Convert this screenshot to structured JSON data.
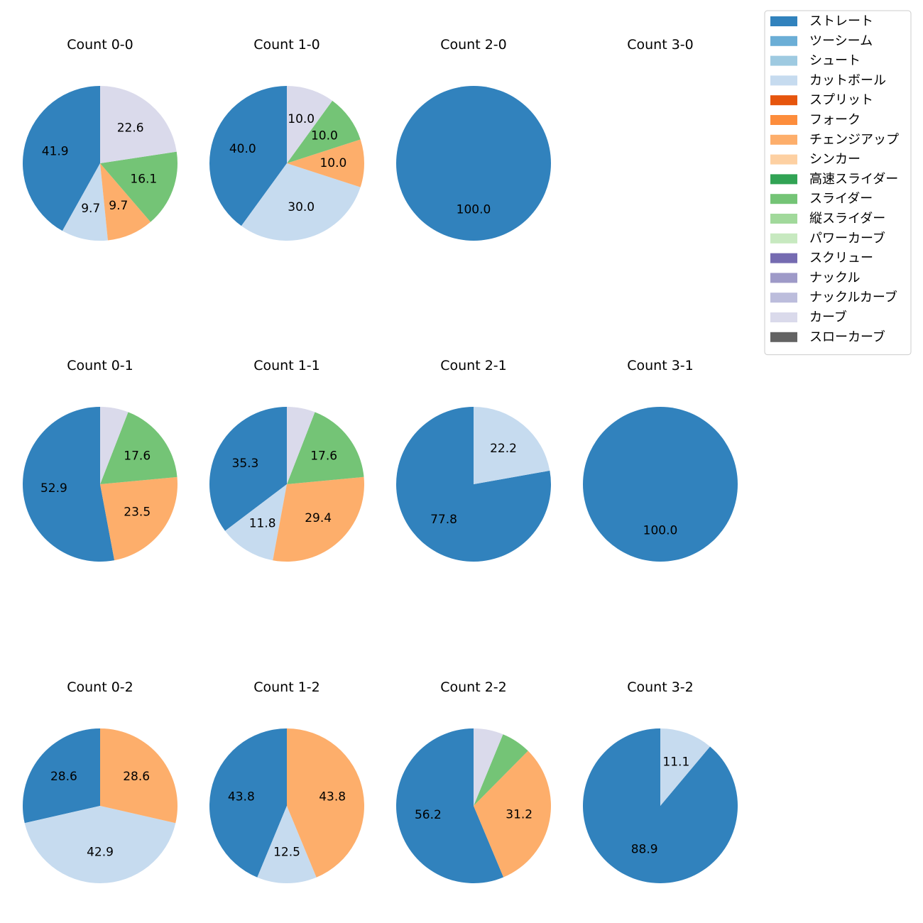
{
  "colors": {
    "ストレート": "#3182bd",
    "ツーシーム": "#6baed6",
    "シュート": "#9ecae1",
    "カットボール": "#c6dbef",
    "スプリット": "#e6550d",
    "フォーク": "#fd8d3c",
    "チェンジアップ": "#fdae6b",
    "シンカー": "#fdd0a2",
    "高速スライダー": "#31a354",
    "スライダー": "#74c476",
    "縦スライダー": "#a1d99b",
    "パワーカーブ": "#c7e9c0",
    "スクリュー": "#756bb1",
    "ナックル": "#9e9ac8",
    "ナックルカーブ": "#bcbddc",
    "カーブ": "#dadaeb",
    "スローカーブ": "#636363"
  },
  "chart_data": [
    {
      "type": "pie",
      "title": "Count 0-0",
      "slices": [
        {
          "label": "ストレート",
          "value": 41.9
        },
        {
          "label": "カットボール",
          "value": 9.7
        },
        {
          "label": "チェンジアップ",
          "value": 9.7
        },
        {
          "label": "スライダー",
          "value": 16.1
        },
        {
          "label": "カーブ",
          "value": 22.6
        }
      ]
    },
    {
      "type": "pie",
      "title": "Count 1-0",
      "slices": [
        {
          "label": "ストレート",
          "value": 40.0
        },
        {
          "label": "カットボール",
          "value": 30.0
        },
        {
          "label": "チェンジアップ",
          "value": 10.0
        },
        {
          "label": "スライダー",
          "value": 10.0
        },
        {
          "label": "カーブ",
          "value": 10.0
        }
      ]
    },
    {
      "type": "pie",
      "title": "Count 2-0",
      "slices": [
        {
          "label": "ストレート",
          "value": 100.0
        }
      ]
    },
    {
      "type": "pie",
      "title": "Count 3-0",
      "slices": []
    },
    {
      "type": "pie",
      "title": "Count 0-1",
      "slices": [
        {
          "label": "ストレート",
          "value": 52.9
        },
        {
          "label": "チェンジアップ",
          "value": 23.5
        },
        {
          "label": "スライダー",
          "value": 17.6
        },
        {
          "label": "カーブ",
          "value": 5.9,
          "show_label": false
        }
      ]
    },
    {
      "type": "pie",
      "title": "Count 1-1",
      "slices": [
        {
          "label": "ストレート",
          "value": 35.3
        },
        {
          "label": "カットボール",
          "value": 11.8
        },
        {
          "label": "チェンジアップ",
          "value": 29.4
        },
        {
          "label": "スライダー",
          "value": 17.6
        },
        {
          "label": "カーブ",
          "value": 5.9,
          "show_label": false
        }
      ]
    },
    {
      "type": "pie",
      "title": "Count 2-1",
      "slices": [
        {
          "label": "ストレート",
          "value": 77.8
        },
        {
          "label": "カットボール",
          "value": 22.2
        }
      ]
    },
    {
      "type": "pie",
      "title": "Count 3-1",
      "slices": [
        {
          "label": "ストレート",
          "value": 100.0
        }
      ]
    },
    {
      "type": "pie",
      "title": "Count 0-2",
      "slices": [
        {
          "label": "ストレート",
          "value": 28.6
        },
        {
          "label": "カットボール",
          "value": 42.9
        },
        {
          "label": "チェンジアップ",
          "value": 28.6
        }
      ]
    },
    {
      "type": "pie",
      "title": "Count 1-2",
      "slices": [
        {
          "label": "ストレート",
          "value": 43.8
        },
        {
          "label": "カットボール",
          "value": 12.5
        },
        {
          "label": "チェンジアップ",
          "value": 43.8
        }
      ]
    },
    {
      "type": "pie",
      "title": "Count 2-2",
      "slices": [
        {
          "label": "ストレート",
          "value": 56.2
        },
        {
          "label": "チェンジアップ",
          "value": 31.2
        },
        {
          "label": "スライダー",
          "value": 6.2,
          "show_label": false
        },
        {
          "label": "カーブ",
          "value": 6.2,
          "show_label": false
        }
      ]
    },
    {
      "type": "pie",
      "title": "Count 3-2",
      "slices": [
        {
          "label": "ストレート",
          "value": 88.9
        },
        {
          "label": "カットボール",
          "value": 11.1
        }
      ]
    }
  ],
  "legend": {
    "position": "top-right",
    "items": [
      "ストレート",
      "ツーシーム",
      "シュート",
      "カットボール",
      "スプリット",
      "フォーク",
      "チェンジアップ",
      "シンカー",
      "高速スライダー",
      "スライダー",
      "縦スライダー",
      "パワーカーブ",
      "スクリュー",
      "ナックル",
      "ナックルカーブ",
      "カーブ",
      "スローカーブ"
    ]
  }
}
